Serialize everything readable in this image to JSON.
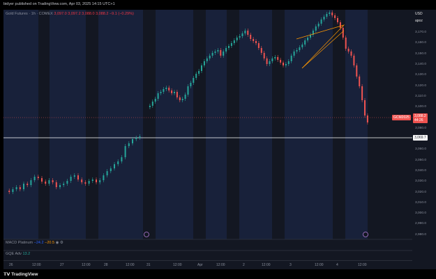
{
  "header": {
    "published_text": "bidyer published on TradingView.com, Apr 03, 2025 14:15 UTC+1"
  },
  "legend": {
    "title": "Gold Futures · 1h · COMEX",
    "open": "3,097.0",
    "high": "3,097.2",
    "low": "3,088.0",
    "close": "3,088.2",
    "change": "−9.1 (−0.29%)"
  },
  "indicators": {
    "macd_label": "MACD Platinum",
    "macd_value1": "−24.2",
    "macd_value2": "−20.5",
    "gqe_label": "GQE Adv",
    "gqe_value": "13.2"
  },
  "price_axis": {
    "currency": "USD",
    "mode": "apoz",
    "ticks": [
      "3,170.0",
      "3,160.0",
      "3,150.0",
      "3,140.0",
      "3,130.0",
      "3,120.0",
      "3,110.0",
      "3,100.0",
      "3,090.0",
      "3,080.0",
      "3,070.0",
      "3,060.0",
      "3,050.0",
      "3,040.0",
      "3,030.0",
      "3,020.0",
      "3,010.0",
      "3,000.0",
      "2,990.0",
      "2,980.0"
    ],
    "current_price": "3,088.2",
    "current_countdown": "44:26",
    "symbol_tag": "GCM2025",
    "line_price": "3,069.7"
  },
  "time_axis": {
    "labels": [
      "26",
      "12:00",
      "27",
      "12:00",
      "28",
      "12:00",
      "31",
      "12:00",
      "Apr",
      "12:00",
      "2",
      "12:00",
      "3",
      "12:00",
      "4",
      "12:00"
    ]
  },
  "footer": {
    "brand": "TradingView"
  },
  "colors": {
    "up": "#26a69a",
    "down": "#ef5350",
    "bg": "#131722",
    "session": "#18213a"
  }
}
